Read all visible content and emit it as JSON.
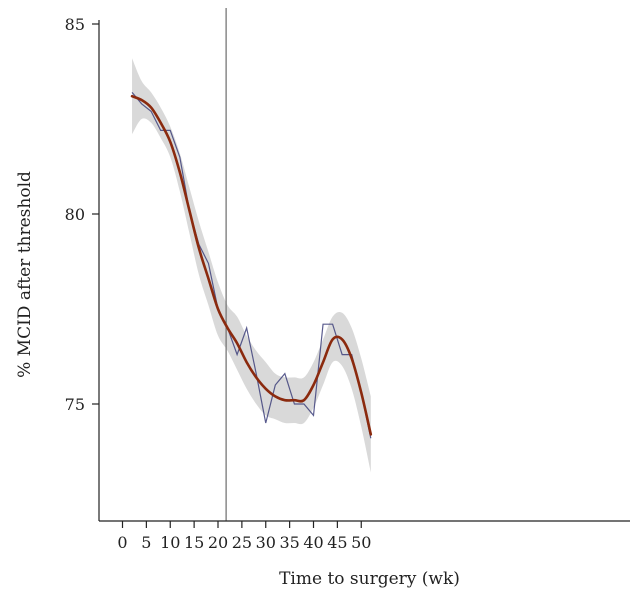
{
  "chart_data": {
    "type": "line",
    "title": "",
    "xlabel": "Time to surgery (wk)",
    "ylabel": "% MCID after threshold",
    "xlim": [
      -1,
      54
    ],
    "ylim": [
      72,
      85
    ],
    "x_ticks": [
      0,
      5,
      10,
      15,
      20,
      25,
      30,
      35,
      40,
      45,
      50
    ],
    "y_ticks": [
      75,
      80,
      85
    ],
    "grid": false,
    "legend": "none",
    "vertical_line_x": 21.7,
    "colors": {
      "observed": "#3d3f7a",
      "smoothed": "#8b2a0e",
      "confidence_band": "#d9d9d9",
      "reference_line": "#777777",
      "axis": "#222222"
    },
    "series": [
      {
        "role": "observed",
        "x": [
          2,
          4,
          6,
          8,
          10,
          12,
          14,
          16,
          18,
          20,
          22,
          24,
          26,
          28,
          30,
          32,
          34,
          36,
          38,
          40,
          42,
          44,
          46,
          48,
          50,
          52
        ],
        "y": [
          83.2,
          82.9,
          82.7,
          82.2,
          82.2,
          81.5,
          80.1,
          79.2,
          78.7,
          77.5,
          77.0,
          76.3,
          77.0,
          75.8,
          74.5,
          75.5,
          75.8,
          75.0,
          75.0,
          74.7,
          77.1,
          77.1,
          76.3,
          76.3,
          75.3,
          74.1
        ]
      },
      {
        "role": "smoothed",
        "x": [
          2,
          4,
          6,
          8,
          10,
          12,
          14,
          16,
          18,
          20,
          22,
          24,
          26,
          28,
          30,
          32,
          34,
          36,
          38,
          40,
          42,
          44,
          46,
          48,
          50,
          52
        ],
        "y": [
          83.1,
          83.0,
          82.8,
          82.4,
          81.9,
          81.1,
          80.1,
          79.1,
          78.3,
          77.5,
          77.0,
          76.6,
          76.1,
          75.7,
          75.4,
          75.2,
          75.1,
          75.1,
          75.1,
          75.5,
          76.1,
          76.7,
          76.7,
          76.2,
          75.3,
          74.2
        ]
      }
    ],
    "confidence_band": {
      "x": [
        2,
        4,
        6,
        8,
        10,
        12,
        14,
        16,
        18,
        20,
        22,
        24,
        26,
        28,
        30,
        32,
        34,
        36,
        38,
        40,
        42,
        44,
        46,
        48,
        50,
        52
      ],
      "lower": [
        82.1,
        82.5,
        82.4,
        82.0,
        81.5,
        80.6,
        79.5,
        78.4,
        77.6,
        76.8,
        76.4,
        75.9,
        75.4,
        75.0,
        74.7,
        74.6,
        74.5,
        74.5,
        74.5,
        74.9,
        75.5,
        76.1,
        76.0,
        75.4,
        74.4,
        73.2
      ],
      "upper": [
        84.1,
        83.5,
        83.2,
        82.8,
        82.3,
        81.6,
        80.7,
        79.8,
        79.0,
        78.2,
        77.6,
        77.3,
        76.8,
        76.4,
        76.1,
        75.8,
        75.7,
        75.7,
        75.7,
        76.1,
        76.7,
        77.3,
        77.4,
        77.0,
        76.2,
        75.2
      ]
    }
  }
}
